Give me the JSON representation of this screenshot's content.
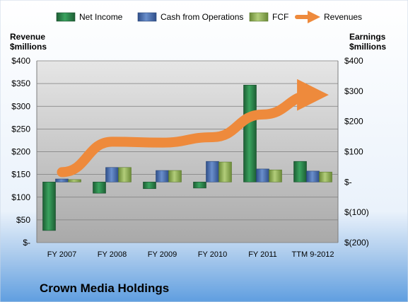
{
  "chart_data": {
    "type": "bar",
    "title": "Crown Media Holdings",
    "left_axis_label": [
      "Revenue",
      "$millions"
    ],
    "right_axis_label": [
      "Earnings",
      "$millions"
    ],
    "categories": [
      "FY 2007",
      "FY 2008",
      "FY 2009",
      "FY 2010",
      "FY 2011",
      "TTM 9-2012"
    ],
    "left_axis": {
      "range": [
        0,
        400
      ],
      "ticks": [
        0,
        50,
        100,
        150,
        200,
        250,
        300,
        350,
        400
      ],
      "tick_labels": [
        "$-",
        "$50",
        "$100",
        "$150",
        "$200",
        "$250",
        "$300",
        "$350",
        "$400"
      ]
    },
    "right_axis": {
      "range": [
        -200,
        400
      ],
      "ticks": [
        -200,
        -100,
        0,
        100,
        200,
        300,
        400
      ],
      "tick_labels": [
        "$(200)",
        "$(100)",
        "$-",
        "$100",
        "$200",
        "$300",
        "$400"
      ]
    },
    "series": [
      {
        "name": "Net Income",
        "type": "bar",
        "axis": "right",
        "color": "#2f8a4f",
        "values": [
          -160,
          -37,
          -22,
          -20,
          320,
          68
        ]
      },
      {
        "name": "Cash from Operations",
        "type": "bar",
        "axis": "right",
        "color": "#4a6fb0",
        "values": [
          10,
          48,
          38,
          68,
          43,
          36
        ]
      },
      {
        "name": "FCF",
        "type": "bar",
        "axis": "right",
        "color": "#93b35a",
        "values": [
          8,
          48,
          38,
          66,
          40,
          33
        ]
      },
      {
        "name": "Revenues",
        "type": "line",
        "axis": "left",
        "color": "#ee8a3c",
        "values": [
          155,
          222,
          220,
          232,
          282,
          325
        ]
      }
    ],
    "grid": true,
    "legend_position": "top"
  }
}
